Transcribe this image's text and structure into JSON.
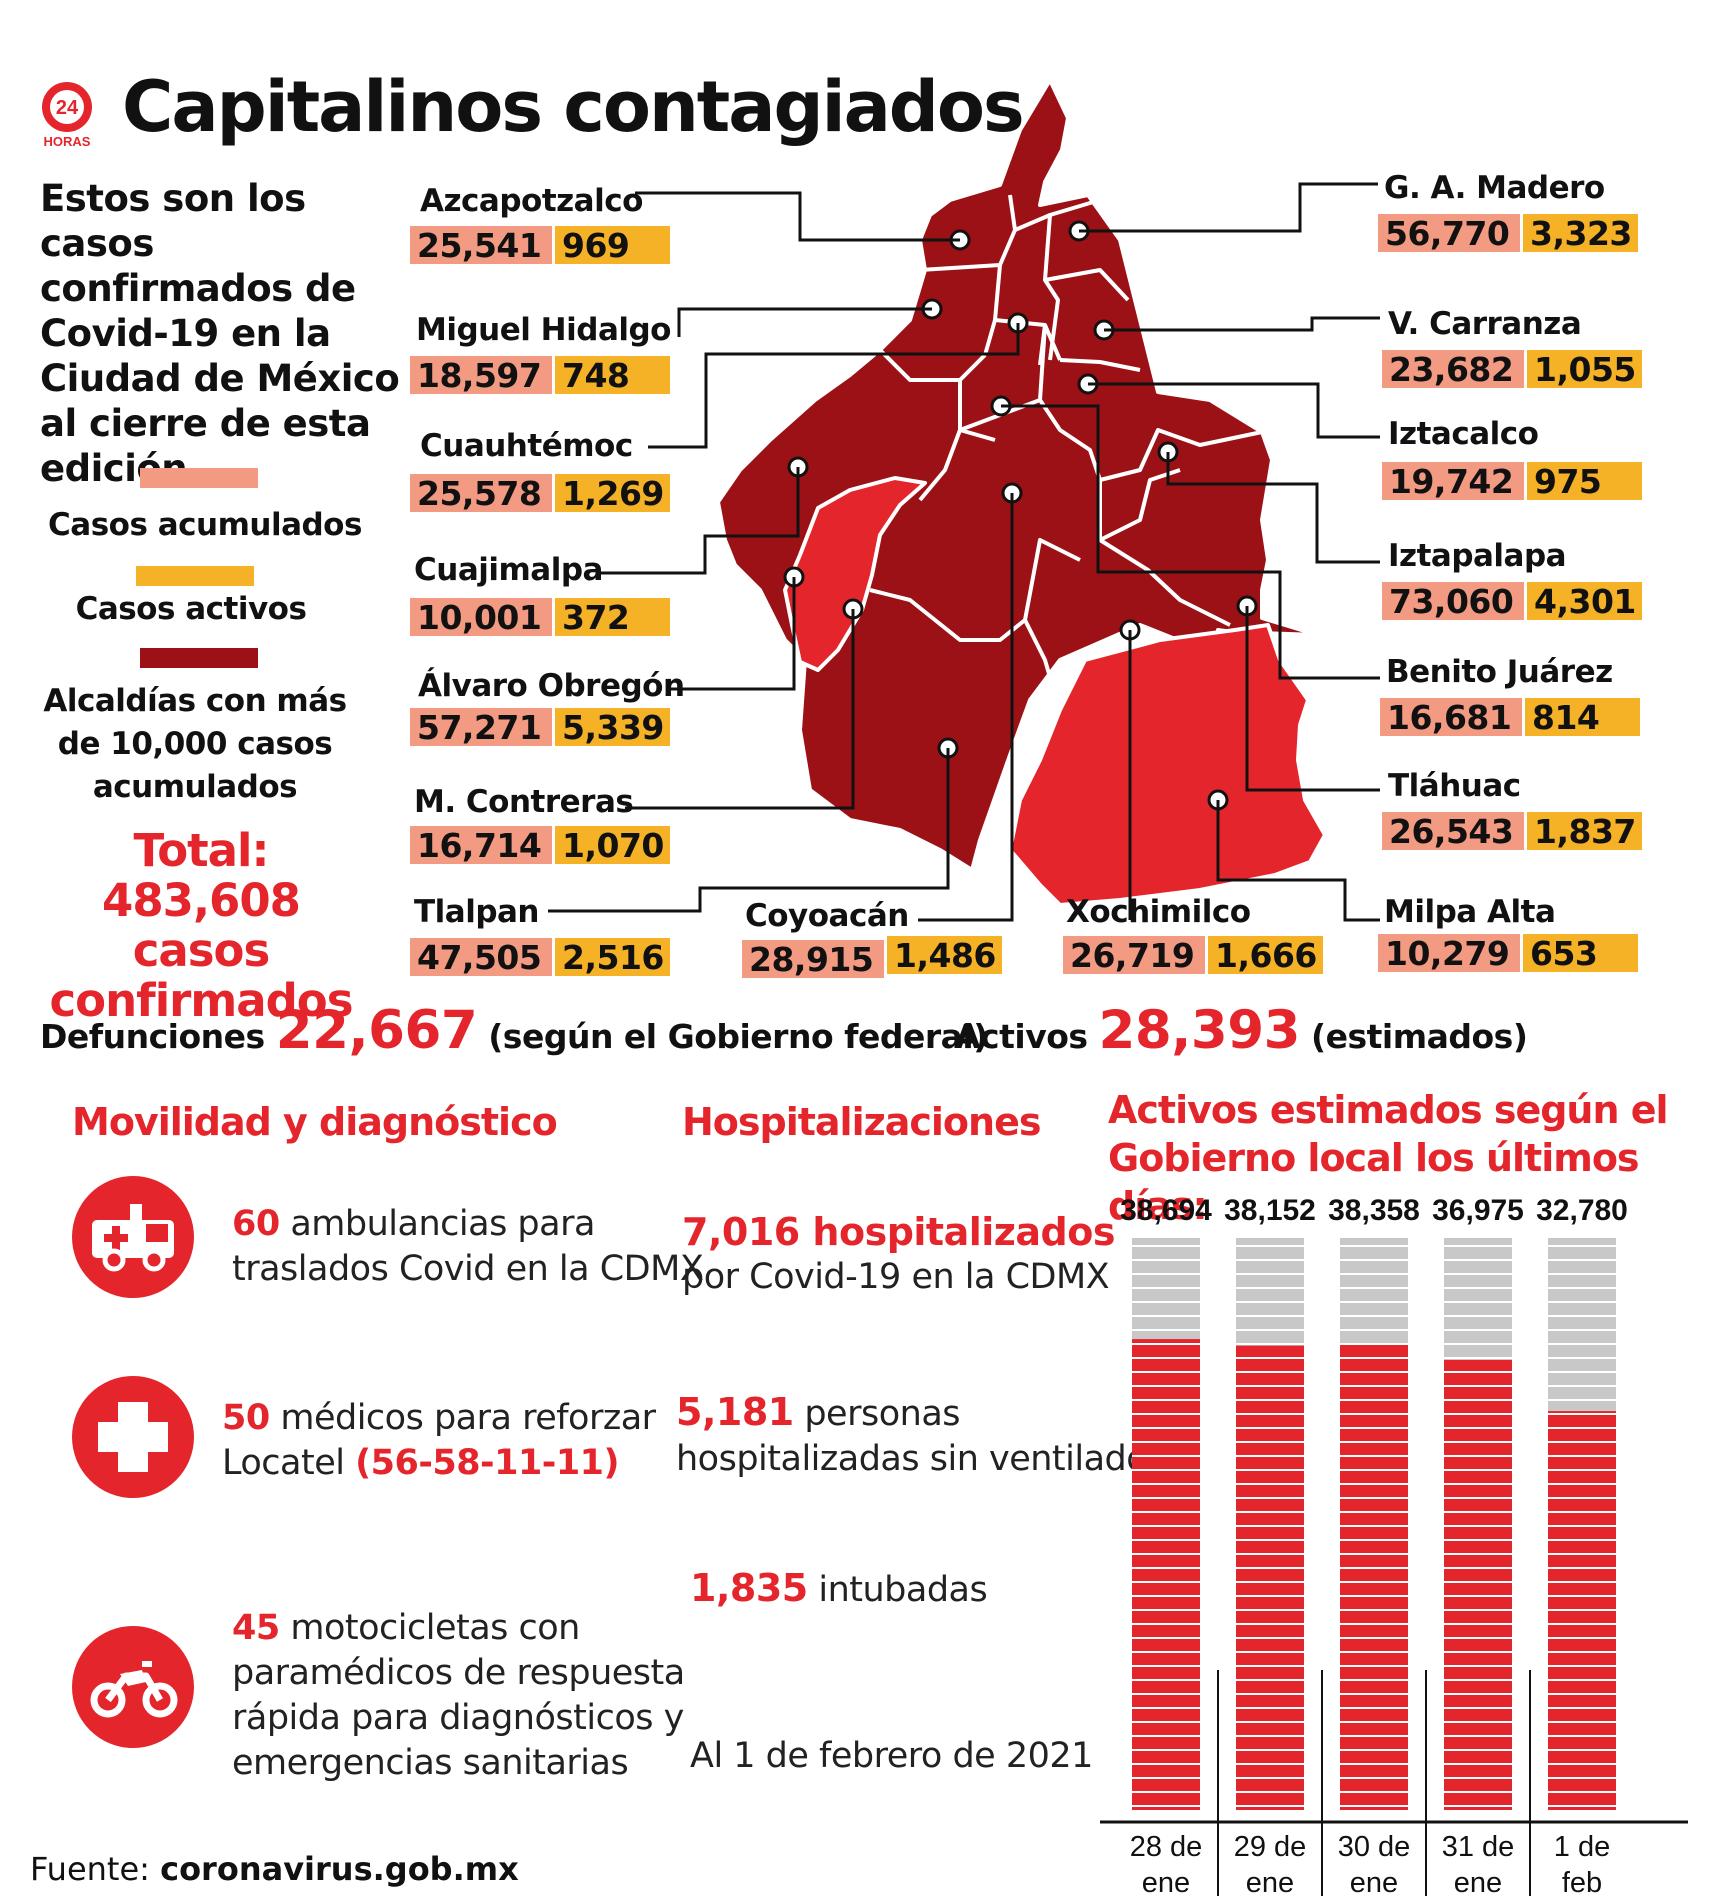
{
  "header": {
    "logo_text": "24 HORAS",
    "title": "Capitalinos contagiados"
  },
  "intro": {
    "lines": [
      "Estos son los casos",
      "confirmados de",
      "Covid-19 en la",
      "Ciudad de México",
      "al cierre de esta",
      "edición"
    ]
  },
  "legend": {
    "accumulated_color": "#f39a82",
    "active_color": "#f5b227",
    "over10k_color": "#9b1116",
    "accumulated": "Casos acumulados",
    "active": "Casos activos",
    "over10k_lines": [
      "Alcaldías con más",
      "de 10,000 casos",
      "acumulados"
    ]
  },
  "total": {
    "label": "Total:",
    "value": "483,608 casos",
    "suffix": "confirmados"
  },
  "districts": [
    {
      "name": "Azcapotzalco",
      "accumulated": "25,541",
      "active": "969"
    },
    {
      "name": "Miguel Hidalgo",
      "accumulated": "18,597",
      "active": "748"
    },
    {
      "name": "Cuauhtémoc",
      "accumulated": "25,578",
      "active": "1,269"
    },
    {
      "name": "Cuajimalpa",
      "accumulated": "10,001",
      "active": "372"
    },
    {
      "name": "Álvaro Obregón",
      "accumulated": "57,271",
      "active": "5,339"
    },
    {
      "name": "M. Contreras",
      "accumulated": "16,714",
      "active": "1,070"
    },
    {
      "name": "Tlalpan",
      "accumulated": "47,505",
      "active": "2,516"
    },
    {
      "name": "Coyoacán",
      "accumulated": "28,915",
      "active": "1,486"
    },
    {
      "name": "Xochimilco",
      "accumulated": "26,719",
      "active": "1,666"
    },
    {
      "name": "G. A. Madero",
      "accumulated": "56,770",
      "active": "3,323"
    },
    {
      "name": "V. Carranza",
      "accumulated": "23,682",
      "active": "1,055"
    },
    {
      "name": "Iztacalco",
      "accumulated": "19,742",
      "active": "975"
    },
    {
      "name": "Iztapalapa",
      "accumulated": "73,060",
      "active": "4,301"
    },
    {
      "name": "Benito Juárez",
      "accumulated": "16,681",
      "active": "814"
    },
    {
      "name": "Tláhuac",
      "accumulated": "26,543",
      "active": "1,837"
    },
    {
      "name": "Milpa Alta",
      "accumulated": "10,279",
      "active": "653"
    }
  ],
  "stats": {
    "deaths_label": "Defunciones",
    "deaths_value": "22,667",
    "deaths_note": "(según el Gobierno federal)",
    "active_label": "Activos",
    "active_value": "28,393",
    "active_note": "(estimados)"
  },
  "mobility": {
    "title": "Movilidad y diagnóstico",
    "items": [
      {
        "icon": "ambulance-icon",
        "number": "60",
        "text_1": "ambulancias para",
        "text_2": "traslados Covid en la CDMX"
      },
      {
        "icon": "medical-cross-icon",
        "number": "50",
        "text_1": "médicos para reforzar",
        "text_2": "Locatel",
        "phone": "(56-58-11-11)"
      },
      {
        "icon": "motorcycle-icon",
        "number": "45",
        "text_1": "motocicletas con",
        "text_2": "paramédicos de respuesta",
        "text_3": "rápida para diagnósticos y",
        "text_4": "emergencias sanitarias"
      }
    ]
  },
  "hospital": {
    "title": "Hospitalizaciones",
    "hospitalized_number": "7,016 hospitalizados",
    "hospitalized_text": "por Covid-19 en la CDMX",
    "no_vent_number": "5,181",
    "no_vent_text_1": "personas",
    "no_vent_text_2": "hospitalizadas sin ventilador",
    "intubated_number": "1,835",
    "intubated_text": "intubadas",
    "date_note": "Al 1 de febrero de 2021"
  },
  "chart_data": {
    "type": "bar",
    "title": "Activos estimados según el Gobierno local los últimos días:",
    "categories": [
      "28 de ene",
      "29 de ene",
      "30 de ene",
      "31 de ene",
      "1 de feb"
    ],
    "category_lines": [
      [
        "28 de",
        "ene"
      ],
      [
        "29 de",
        "ene"
      ],
      [
        "30 de",
        "ene"
      ],
      [
        "31 de",
        "ene"
      ],
      [
        "1 de",
        "feb"
      ]
    ],
    "values": [
      38694,
      38152,
      38358,
      36975,
      32780
    ],
    "value_labels": [
      "38,694",
      "38,152",
      "38,358",
      "36,975",
      "32,780"
    ],
    "bar_color": "#e4252b",
    "track_color": "#c8c8c8"
  },
  "source": {
    "label": "Fuente:",
    "value": "coronavirus.gob.mx"
  }
}
